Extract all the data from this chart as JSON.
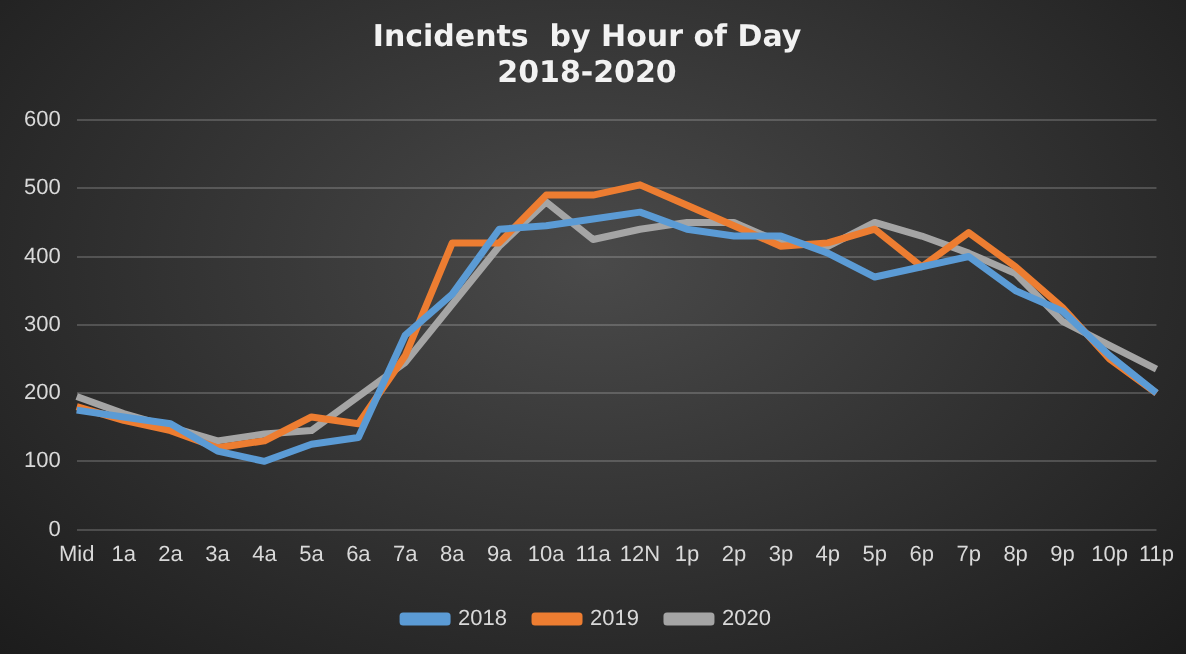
{
  "chart_data": {
    "type": "line",
    "title": "Incidents  by Hour of Day",
    "subtitle": "2018-2020",
    "categories": [
      "Mid",
      "1a",
      "2a",
      "3a",
      "4a",
      "5a",
      "6a",
      "7a",
      "8a",
      "9a",
      "10a",
      "11a",
      "12N",
      "1p",
      "2p",
      "3p",
      "4p",
      "5p",
      "6p",
      "7p",
      "8p",
      "9p",
      "10p",
      "11p"
    ],
    "series": [
      {
        "name": "2018",
        "color": "#5b9bd5",
        "values": [
          175,
          165,
          155,
          115,
          100,
          125,
          135,
          285,
          345,
          440,
          445,
          455,
          465,
          440,
          430,
          430,
          405,
          370,
          385,
          400,
          350,
          320,
          255,
          200
        ]
      },
      {
        "name": "2019",
        "color": "#ed7d31",
        "values": [
          180,
          160,
          145,
          120,
          130,
          165,
          155,
          255,
          420,
          420,
          490,
          490,
          505,
          475,
          445,
          415,
          420,
          440,
          385,
          435,
          385,
          325,
          250,
          200
        ]
      },
      {
        "name": "2020",
        "color": "#a5a5a5",
        "values": [
          195,
          170,
          150,
          130,
          140,
          145,
          195,
          245,
          330,
          415,
          480,
          425,
          440,
          450,
          450,
          420,
          415,
          450,
          430,
          405,
          375,
          305,
          270,
          235
        ]
      }
    ],
    "ylim": [
      0,
      600
    ],
    "yticks": [
      0,
      100,
      200,
      300,
      400,
      500,
      600
    ],
    "grid": "y",
    "legend": "bottom",
    "marker": "none",
    "line_style": "solid"
  }
}
